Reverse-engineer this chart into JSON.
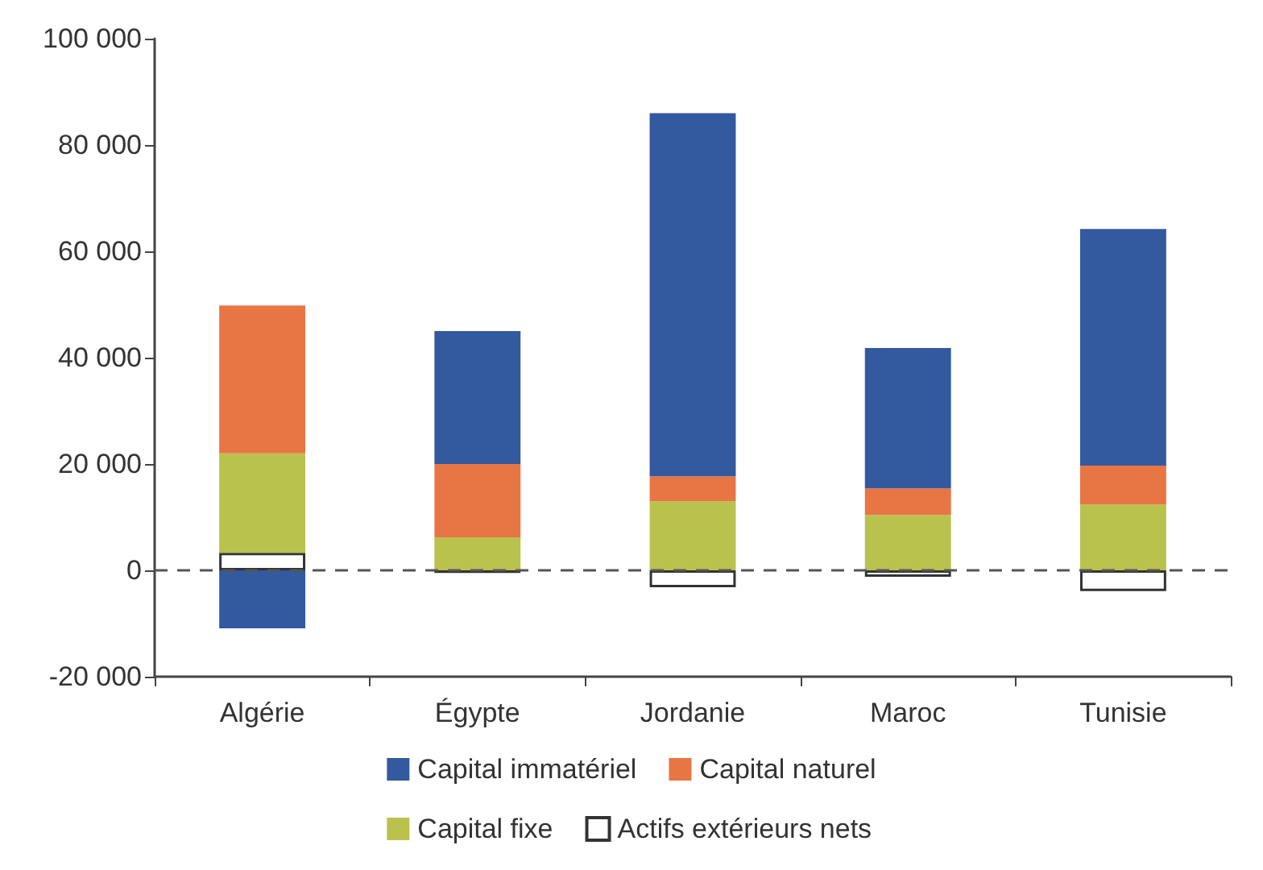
{
  "chart_data": {
    "type": "bar",
    "stacked": true,
    "categories": [
      "Algérie",
      "Égypte",
      "Jordanie",
      "Maroc",
      "Tunisie"
    ],
    "series": [
      {
        "name": "Actifs extérieurs nets",
        "color": "#ffffff",
        "values": [
          3300,
          -500,
          -3200,
          -1200,
          -3900
        ]
      },
      {
        "name": "Capital fixe",
        "color": "#b9c24d",
        "values": [
          18700,
          6200,
          13000,
          10400,
          12400
        ]
      },
      {
        "name": "Capital naturel",
        "color": "#e87544",
        "values": [
          27800,
          13800,
          4700,
          5000,
          7300
        ]
      },
      {
        "name": "Capital immatériel",
        "color": "#33599e",
        "values": [
          -10900,
          25000,
          68300,
          26400,
          44500
        ]
      }
    ],
    "ylim": [
      -20000,
      100000
    ],
    "yticks": [
      {
        "value": -20000,
        "label": "-20 000"
      },
      {
        "value": 0,
        "label": "0"
      },
      {
        "value": 20000,
        "label": "20 000"
      },
      {
        "value": 40000,
        "label": "40 000"
      },
      {
        "value": 60000,
        "label": "60 000"
      },
      {
        "value": 80000,
        "label": "80 000"
      },
      {
        "value": 100000,
        "label": "100 000"
      }
    ],
    "ref_lines": [
      {
        "axis": "y",
        "value": 0,
        "color": "#555555",
        "line_style": "dashed"
      }
    ],
    "grid": false,
    "legend": "bottom"
  }
}
